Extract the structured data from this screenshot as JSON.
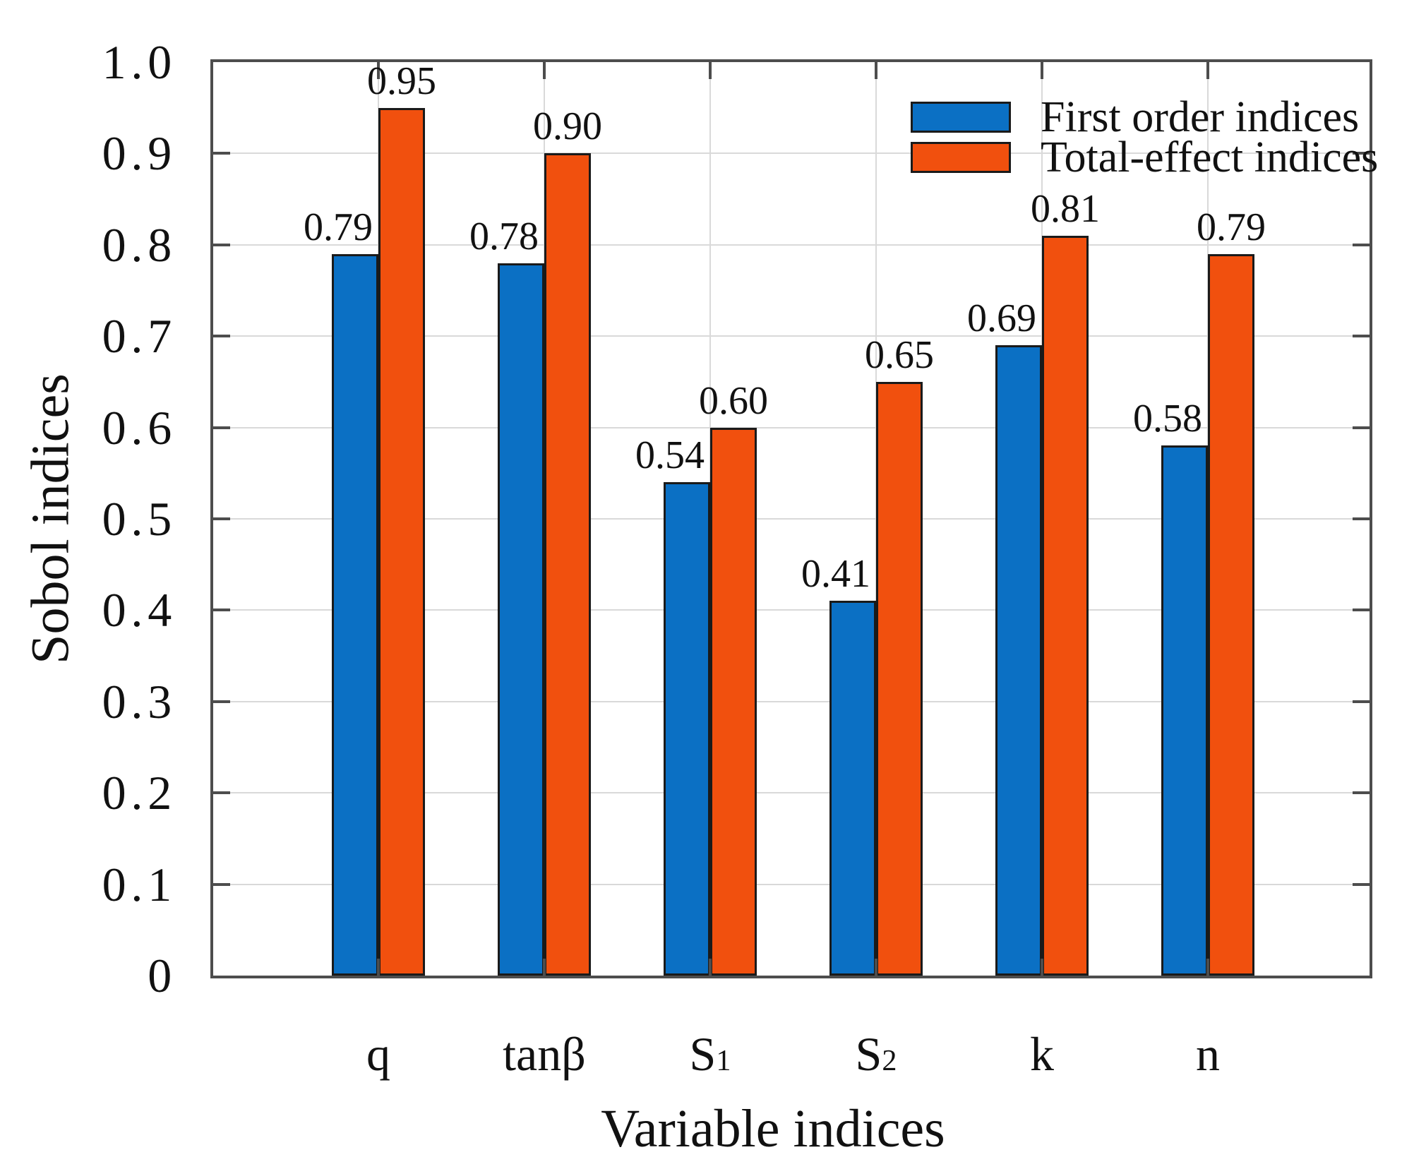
{
  "chart_data": {
    "type": "bar",
    "title": "",
    "xlabel": "Variable indices",
    "ylabel": "Sobol indices",
    "ylim": [
      0,
      1.0
    ],
    "grid": true,
    "legend_position": "top-right",
    "yticks": [
      {
        "value": 0.0,
        "label": "0"
      },
      {
        "value": 0.1,
        "label": "0.1"
      },
      {
        "value": 0.2,
        "label": "0.2"
      },
      {
        "value": 0.3,
        "label": "0.3"
      },
      {
        "value": 0.4,
        "label": "0.4"
      },
      {
        "value": 0.5,
        "label": "0.5"
      },
      {
        "value": 0.6,
        "label": "0.6"
      },
      {
        "value": 0.7,
        "label": "0.7"
      },
      {
        "value": 0.8,
        "label": "0.8"
      },
      {
        "value": 0.9,
        "label": "0.9"
      },
      {
        "value": 1.0,
        "label": "1.0"
      }
    ],
    "categories": [
      {
        "base": "q",
        "sub": ""
      },
      {
        "base": "tanβ",
        "sub": ""
      },
      {
        "base": "S",
        "sub": "1"
      },
      {
        "base": "S",
        "sub": "2"
      },
      {
        "base": "k",
        "sub": ""
      },
      {
        "base": "n",
        "sub": ""
      }
    ],
    "series": [
      {
        "name": "First order indices",
        "color": "#0b70c4",
        "edge_color": "#1a1a1a",
        "values": [
          0.79,
          0.78,
          0.54,
          0.41,
          0.69,
          0.58
        ],
        "labels": [
          "0.79",
          "0.78",
          "0.54",
          "0.41",
          "0.69",
          "0.58"
        ]
      },
      {
        "name": "Total-effect indices",
        "color": "#f1500e",
        "edge_color": "#1a1a1a",
        "values": [
          0.95,
          0.9,
          0.6,
          0.65,
          0.81,
          0.79
        ],
        "labels": [
          "0.95",
          "0.90",
          "0.60",
          "0.65",
          "0.81",
          "0.79"
        ]
      }
    ],
    "style_colors": {
      "frame": "#4d4d4d",
      "grid": "#d9d9d9",
      "text": "#111111",
      "background": "#ffffff"
    }
  }
}
